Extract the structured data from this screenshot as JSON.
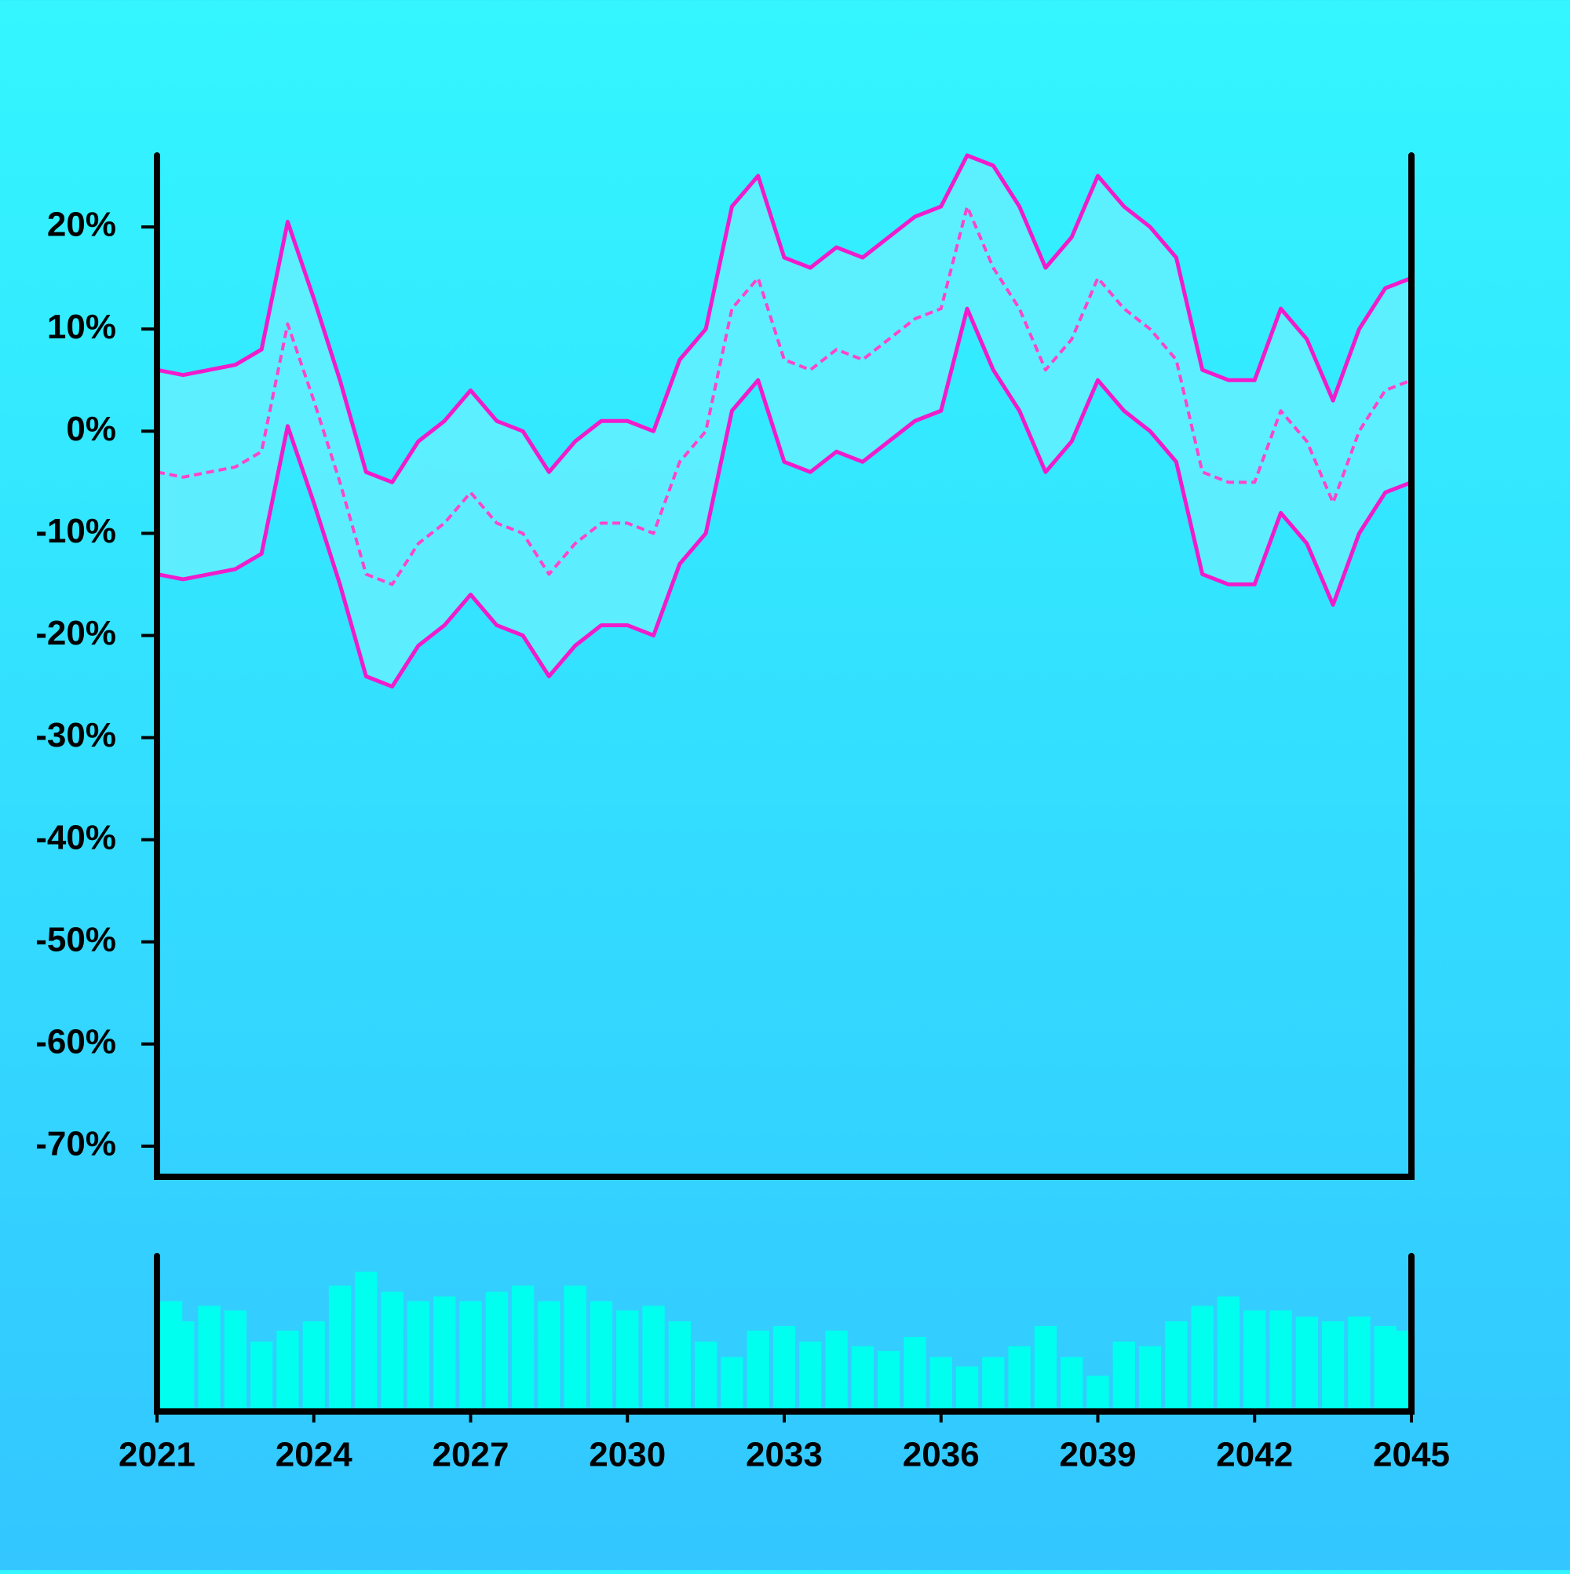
{
  "chart_data": [
    {
      "type": "line",
      "x": [
        2021,
        2021.5,
        2022,
        2022.5,
        2023,
        2023.5,
        2024,
        2024.5,
        2025,
        2025.5,
        2026,
        2026.5,
        2027,
        2027.5,
        2028,
        2028.5,
        2029,
        2029.5,
        2030,
        2030.5,
        2031,
        2031.5,
        2032,
        2032.5,
        2033,
        2033.5,
        2034,
        2034.5,
        2035,
        2035.5,
        2036,
        2036.5,
        2037,
        2037.5,
        2038,
        2038.5,
        2039,
        2039.5,
        2040,
        2040.5,
        2041,
        2041.5,
        2042,
        2042.5,
        2043,
        2043.5,
        2044,
        2044.5,
        2045
      ],
      "series": [
        {
          "color": "#f01ccc",
          "dashed": false,
          "values": [
            6,
            5.5,
            6,
            6.5,
            8,
            20.5,
            13,
            5,
            -4,
            -5,
            -1,
            1,
            4,
            1,
            0,
            -4,
            -1,
            1,
            1,
            0,
            7,
            10,
            22,
            25,
            17,
            16,
            18,
            17,
            19,
            21,
            22,
            27,
            26,
            22,
            16,
            19,
            25,
            22,
            20,
            17,
            6,
            5,
            5,
            12,
            9,
            3,
            10,
            14,
            15
          ]
        },
        {
          "color": "#ff44cc",
          "dashed": true,
          "values": [
            -4,
            -4.5,
            -4,
            -3.5,
            -2,
            10.5,
            3,
            -5,
            -14,
            -15,
            -11,
            -9,
            -6,
            -9,
            -10,
            -14,
            -11,
            -9,
            -9,
            -10,
            -3,
            0,
            12,
            15,
            7,
            6,
            8,
            7,
            9,
            11,
            12,
            22,
            16,
            12,
            6,
            9,
            15,
            12,
            10,
            7,
            -4,
            -5,
            -5,
            2,
            -1,
            -7,
            0,
            4,
            5
          ]
        },
        {
          "color": "#f01ccc",
          "dashed": false,
          "values": [
            -14,
            -14.5,
            -14,
            -13.5,
            -12,
            0.5,
            -7,
            -15,
            -24,
            -25,
            -21,
            -19,
            -16,
            -19,
            -20,
            -24,
            -21,
            -19,
            -19,
            -20,
            -13,
            -10,
            2,
            5,
            -3,
            -4,
            -2,
            -3,
            -1,
            1,
            2,
            12,
            6,
            2,
            -4,
            -1,
            5,
            2,
            0,
            -3,
            -14,
            -15,
            -15,
            -8,
            -11,
            -17,
            -10,
            -6,
            -5
          ]
        }
      ],
      "band": {
        "color": "#66f0ff"
      },
      "xlim": [
        2021,
        2045
      ],
      "xticks": [
        2021,
        2024,
        2027,
        2030,
        2033,
        2036,
        2039,
        2042,
        2045
      ],
      "ylim": [
        -73,
        27
      ],
      "yticks": [
        {
          "value": -70,
          "label": "-70%"
        },
        {
          "value": -60,
          "label": "-60%"
        },
        {
          "value": -50,
          "label": "-50%"
        },
        {
          "value": -40,
          "label": "-40%"
        },
        {
          "value": -30,
          "label": "-30%"
        },
        {
          "value": -20,
          "label": "-20%"
        },
        {
          "value": -10,
          "label": "-10%"
        },
        {
          "value": 0,
          "label": "0%"
        },
        {
          "value": 10,
          "label": "10%"
        },
        {
          "value": 20,
          "label": "20%"
        }
      ]
    },
    {
      "type": "bar",
      "color": "#00ffee",
      "values": [
        71,
        58,
        68,
        65,
        45,
        52,
        58,
        81,
        90,
        77,
        71,
        74,
        71,
        77,
        81,
        71,
        81,
        71,
        65,
        68,
        58,
        45,
        35,
        52,
        55,
        45,
        52,
        42,
        39,
        48,
        35,
        29,
        35,
        42,
        55,
        35,
        23,
        45,
        42,
        58,
        68,
        74,
        65,
        65,
        61,
        58,
        61,
        55,
        52
      ],
      "ylim": [
        0,
        100
      ]
    }
  ]
}
